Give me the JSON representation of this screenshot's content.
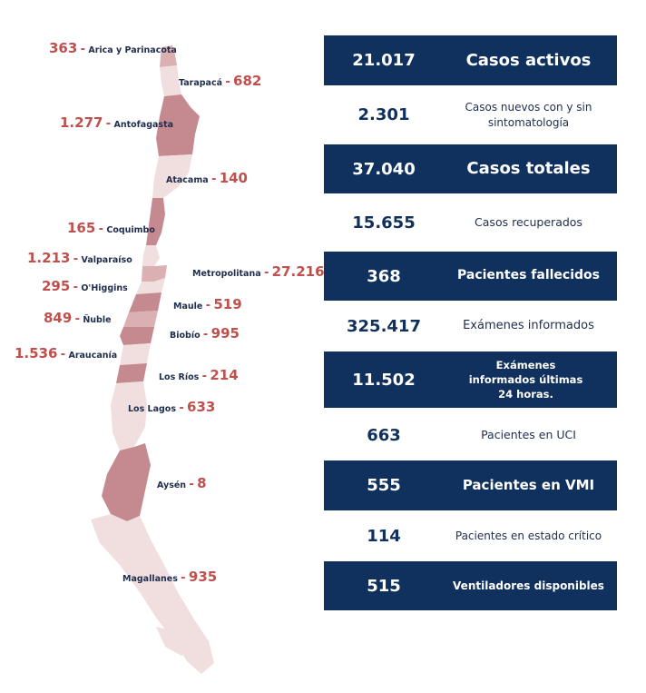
{
  "colors": {
    "navy": "#10305e",
    "value_red": "#c0504d",
    "map_dark": "#c58a90",
    "map_mid": "#dbb0b3",
    "map_light": "#f1dedf"
  },
  "regions": [
    {
      "id": "arica",
      "name": "Arica y Parinacota",
      "value": "363"
    },
    {
      "id": "tarapaca",
      "name": "Tarapacá",
      "value": "682"
    },
    {
      "id": "antofagasta",
      "name": "Antofagasta",
      "value": "1.277"
    },
    {
      "id": "atacama",
      "name": "Atacama",
      "value": "140"
    },
    {
      "id": "coquimbo",
      "name": "Coquimbo",
      "value": "165"
    },
    {
      "id": "valparaiso",
      "name": "Valparaíso",
      "value": "1.213"
    },
    {
      "id": "metropolitana",
      "name": "Metropolitana",
      "value": "27.216"
    },
    {
      "id": "ohiggins",
      "name": "O'Higgins",
      "value": "295"
    },
    {
      "id": "maule",
      "name": "Maule",
      "value": "519"
    },
    {
      "id": "nuble",
      "name": "Ñuble",
      "value": "849"
    },
    {
      "id": "biobio",
      "name": "Biobío",
      "value": "995"
    },
    {
      "id": "araucania",
      "name": "Araucanía",
      "value": "1.536"
    },
    {
      "id": "losrios",
      "name": "Los Ríos",
      "value": "214"
    },
    {
      "id": "loslagos",
      "name": "Los Lagos",
      "value": "633"
    },
    {
      "id": "aysen",
      "name": "Aysén",
      "value": "8"
    },
    {
      "id": "magallanes",
      "name": "Magallanes",
      "value": "935"
    }
  ],
  "stats": [
    {
      "value": "21.017",
      "label": "Casos activos",
      "style": "dark"
    },
    {
      "value": "2.301",
      "label": "Casos nuevos con y sin sintomatología",
      "style": "light"
    },
    {
      "value": "37.040",
      "label": "Casos totales",
      "style": "dark"
    },
    {
      "value": "15.655",
      "label": "Casos recuperados",
      "style": "light"
    },
    {
      "value": "368",
      "label": "Pacientes fallecidos",
      "style": "dark"
    },
    {
      "value": "325.417",
      "label": "Exámenes informados",
      "style": "light"
    },
    {
      "value": "11.502",
      "label": "Exámenes informados últimas 24 horas.",
      "style": "dark"
    },
    {
      "value": "663",
      "label": "Pacientes en UCI",
      "style": "light"
    },
    {
      "value": "555",
      "label": "Pacientes en VMI",
      "style": "dark"
    },
    {
      "value": "114",
      "label": "Pacientes en estado crítico",
      "style": "light"
    },
    {
      "value": "515",
      "label": "Ventiladores disponibles",
      "style": "dark"
    }
  ]
}
